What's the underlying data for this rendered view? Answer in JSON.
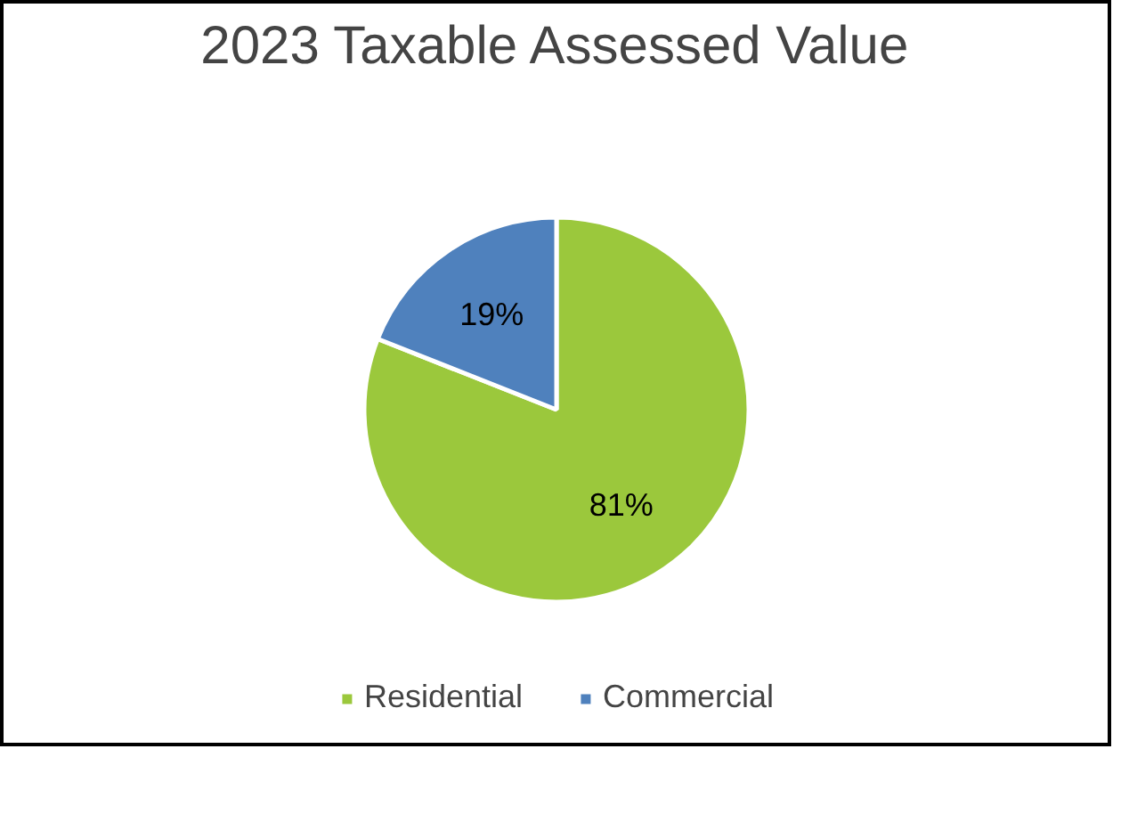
{
  "chart_data": {
    "type": "pie",
    "title": "2023 Taxable Assessed Value",
    "categories": [
      "Residential",
      "Commercial"
    ],
    "values": [
      81,
      19
    ],
    "colors": [
      "#9bc83c",
      "#4f81bd"
    ],
    "value_labels": [
      "81%",
      "19%"
    ],
    "legend": "bottom"
  }
}
